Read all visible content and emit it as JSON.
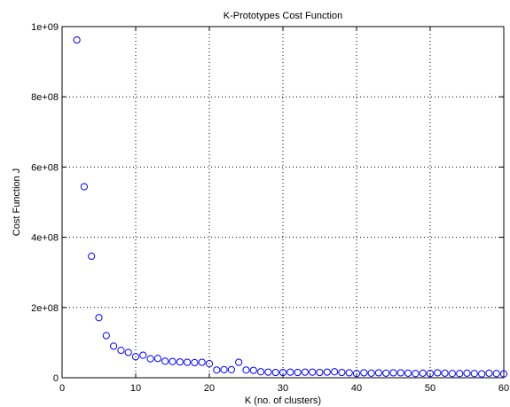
{
  "chart_data": {
    "type": "scatter",
    "title": "K-Prototypes Cost Function",
    "xlabel": "K (no. of clusters)",
    "ylabel": "Cost Function J",
    "xlim": [
      0,
      60
    ],
    "ylim": [
      0,
      1000000000
    ],
    "xticks": [
      0,
      10,
      20,
      30,
      40,
      50,
      60
    ],
    "xtick_labels": [
      "0",
      "10",
      "20",
      "30",
      "40",
      "50",
      "60"
    ],
    "yticks": [
      0,
      200000000,
      400000000,
      600000000,
      800000000,
      1000000000
    ],
    "ytick_labels": [
      "0",
      "2e+08",
      "4e+08",
      "6e+08",
      "8e+08",
      "1e+09"
    ],
    "grid": true,
    "marker": "open-circle",
    "marker_color": "#0000ff",
    "series": [
      {
        "x": [
          2,
          3,
          4,
          5,
          6,
          7,
          8,
          9,
          10,
          11,
          12,
          13,
          14,
          15,
          16,
          17,
          18,
          19,
          20,
          21,
          22,
          23,
          24,
          25,
          26,
          27,
          28,
          29,
          30,
          31,
          32,
          33,
          34,
          35,
          36,
          37,
          38,
          39,
          40,
          41,
          42,
          43,
          44,
          45,
          46,
          47,
          48,
          49,
          50,
          51,
          52,
          53,
          54,
          55,
          56,
          57,
          58,
          59,
          60
        ],
        "y": [
          962000000,
          544000000,
          346000000,
          171000000,
          120000000,
          90000000,
          78000000,
          72000000,
          60000000,
          64000000,
          54000000,
          55000000,
          47000000,
          46000000,
          45000000,
          44000000,
          43000000,
          44000000,
          40000000,
          22000000,
          23000000,
          23000000,
          44000000,
          22000000,
          21000000,
          17000000,
          16000000,
          15000000,
          15000000,
          16000000,
          15000000,
          16000000,
          16000000,
          15000000,
          16000000,
          17000000,
          15000000,
          14000000,
          12000000,
          14000000,
          13000000,
          14000000,
          13000000,
          14000000,
          14000000,
          13000000,
          12000000,
          13000000,
          12000000,
          14000000,
          13000000,
          12000000,
          12000000,
          13000000,
          12000000,
          11000000,
          13000000,
          12000000,
          11000000
        ]
      }
    ]
  }
}
